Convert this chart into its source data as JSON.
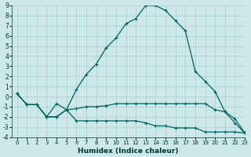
{
  "xlabel": "Humidex (Indice chaleur)",
  "xlim": [
    -0.5,
    23
  ],
  "ylim": [
    -4,
    9
  ],
  "yticks": [
    -4,
    -3,
    -2,
    -1,
    0,
    1,
    2,
    3,
    4,
    5,
    6,
    7,
    8,
    9
  ],
  "xticks": [
    0,
    1,
    2,
    3,
    4,
    5,
    6,
    7,
    8,
    9,
    10,
    11,
    12,
    13,
    14,
    15,
    16,
    17,
    18,
    19,
    20,
    21,
    22,
    23
  ],
  "background_color": "#cce8e8",
  "grid_color": "#aacece",
  "line_color": "#006060",
  "curve_main_x": [
    0,
    1,
    2,
    3,
    4,
    5,
    6,
    7,
    8,
    9,
    10,
    11,
    12,
    13,
    14,
    15,
    16,
    17,
    18,
    19,
    20,
    21,
    22,
    23
  ],
  "curve_main_y": [
    0.3,
    -0.8,
    -0.8,
    -2.0,
    -0.7,
    -1.3,
    0.7,
    2.2,
    3.2,
    4.8,
    5.8,
    7.2,
    7.7,
    9.0,
    9.0,
    8.5,
    7.5,
    6.5,
    2.5,
    1.5,
    0.5,
    -1.5,
    -2.6,
    -3.6
  ],
  "curve_mid_x": [
    0,
    1,
    2,
    3,
    4,
    5,
    6,
    7,
    8,
    9,
    10,
    11,
    12,
    13,
    14,
    15,
    16,
    17,
    18,
    19,
    20,
    21,
    22,
    23
  ],
  "curve_mid_y": [
    0.3,
    -0.8,
    -0.8,
    -2.0,
    -2.0,
    -1.3,
    -1.2,
    -1.0,
    -1.0,
    -0.9,
    -0.7,
    -0.7,
    -0.7,
    -0.7,
    -0.7,
    -0.7,
    -0.7,
    -0.7,
    -0.7,
    -0.7,
    -1.3,
    -1.5,
    -2.2,
    -3.6
  ],
  "curve_low_x": [
    0,
    1,
    2,
    3,
    4,
    5,
    6,
    7,
    8,
    9,
    10,
    11,
    12,
    13,
    14,
    15,
    16,
    17,
    18,
    19,
    20,
    21,
    22,
    23
  ],
  "curve_low_y": [
    0.3,
    -0.8,
    -0.8,
    -2.0,
    -2.0,
    -1.3,
    -2.4,
    -2.4,
    -2.4,
    -2.4,
    -2.4,
    -2.4,
    -2.4,
    -2.6,
    -2.9,
    -2.9,
    -3.1,
    -3.1,
    -3.1,
    -3.5,
    -3.5,
    -3.5,
    -3.5,
    -3.6
  ]
}
